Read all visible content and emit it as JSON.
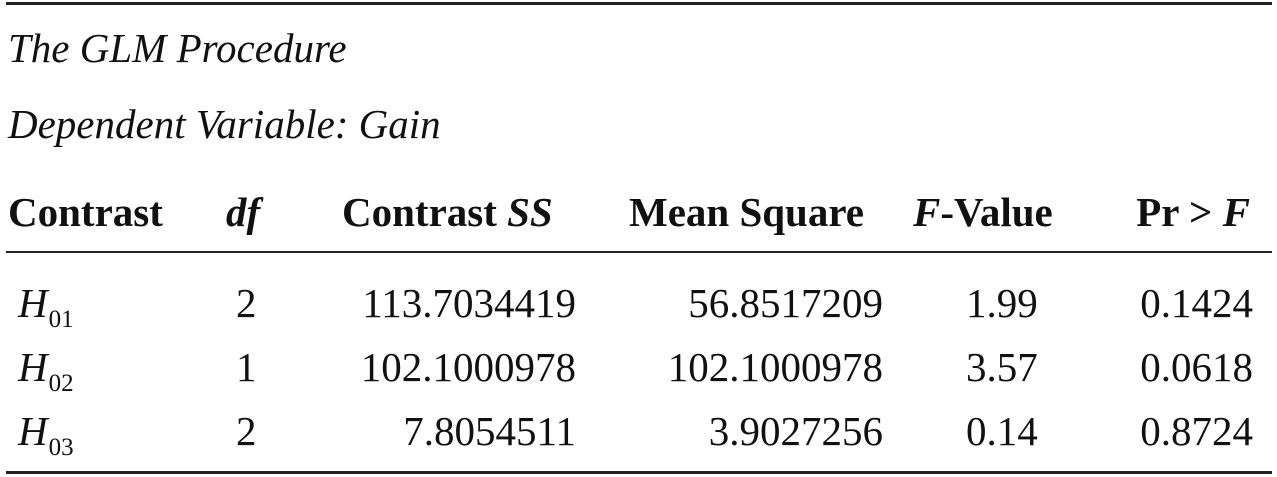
{
  "title": {
    "procedure": "The GLM Procedure",
    "dependent_variable": "Dependent Variable: Gain"
  },
  "table": {
    "headers": {
      "contrast": "Contrast",
      "df": "df",
      "contrast_ss_prefix": "Contrast",
      "contrast_ss_italic": "SS",
      "mean_square": "Mean Square",
      "f_value_italic": "F",
      "f_value_rest": "-Value",
      "pr_prefix": "Pr >",
      "pr_italic": "F"
    },
    "rows": [
      {
        "hyp_letter": "H",
        "hyp_sub": "01",
        "df": "2",
        "contrast_ss": "113.7034419",
        "mean_square": "56.8517209",
        "f_value": "1.99",
        "pr": "0.1424"
      },
      {
        "hyp_letter": "H",
        "hyp_sub": "02",
        "df": "1",
        "contrast_ss": "102.1000978",
        "mean_square": "102.1000978",
        "f_value": "3.57",
        "pr": "0.0618"
      },
      {
        "hyp_letter": "H",
        "hyp_sub": "03",
        "df": "2",
        "contrast_ss": "7.8054511",
        "mean_square": "3.9027256",
        "f_value": "0.14",
        "pr": "0.8724"
      }
    ]
  }
}
